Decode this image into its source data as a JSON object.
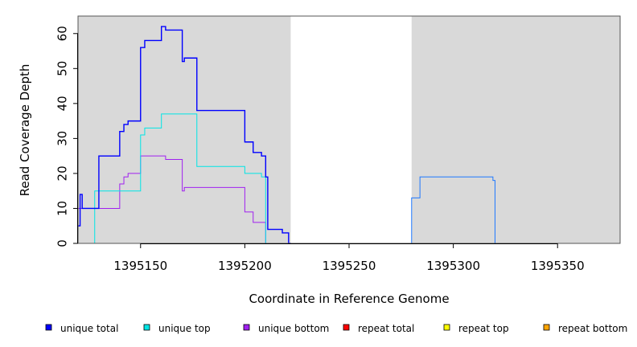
{
  "chart_data": {
    "type": "line",
    "title": "",
    "xlabel": "Coordinate in Reference Genome",
    "ylabel": "Read Coverage Depth",
    "xlim": [
      1395120,
      1395380
    ],
    "ylim": [
      0,
      65
    ],
    "x_ticks": [
      1395150,
      1395200,
      1395250,
      1395300,
      1395350
    ],
    "y_ticks": [
      0,
      10,
      20,
      30,
      40,
      50,
      60
    ],
    "grid": false,
    "shaded_regions": [
      {
        "x_start": 1395120,
        "x_end": 1395222,
        "color": "#d9d9d9"
      },
      {
        "x_start": 1395280,
        "x_end": 1395380,
        "color": "#d9d9d9"
      }
    ],
    "legend_position": "bottom",
    "series": [
      {
        "name": "unique total",
        "color": "#0000ff",
        "x": [
          1395120,
          1395121,
          1395121,
          1395122,
          1395122,
          1395130,
          1395130,
          1395140,
          1395140,
          1395142,
          1395142,
          1395144,
          1395144,
          1395150,
          1395150,
          1395152,
          1395152,
          1395160,
          1395160,
          1395162,
          1395162,
          1395170,
          1395170,
          1395171,
          1395171,
          1395177,
          1395177,
          1395200,
          1395200,
          1395204,
          1395204,
          1395208,
          1395208,
          1395210,
          1395210,
          1395211,
          1395211,
          1395218,
          1395218,
          1395221,
          1395221,
          1395222
        ],
        "y": [
          5,
          5,
          14,
          14,
          10,
          10,
          25,
          25,
          32,
          32,
          34,
          34,
          35,
          35,
          56,
          56,
          58,
          58,
          62,
          62,
          61,
          61,
          52,
          52,
          53,
          53,
          38,
          38,
          29,
          29,
          26,
          26,
          25,
          25,
          19,
          19,
          4,
          4,
          3,
          3,
          0,
          0
        ]
      },
      {
        "name": "unique top",
        "color": "#00e5e5",
        "x": [
          1395120,
          1395128,
          1395128,
          1395150,
          1395150,
          1395152,
          1395152,
          1395160,
          1395160,
          1395177,
          1395177,
          1395200,
          1395200,
          1395208,
          1395208,
          1395210,
          1395210,
          1395222
        ],
        "y": [
          0,
          0,
          15,
          15,
          31,
          31,
          33,
          33,
          37,
          37,
          22,
          22,
          20,
          20,
          19,
          19,
          0,
          0
        ]
      },
      {
        "name": "unique bottom",
        "color": "#a020f0",
        "x": [
          1395120,
          1395140,
          1395140,
          1395142,
          1395142,
          1395144,
          1395144,
          1395150,
          1395150,
          1395162,
          1395162,
          1395170,
          1395170,
          1395171,
          1395171,
          1395200,
          1395200,
          1395204,
          1395204,
          1395210,
          1395210,
          1395222
        ],
        "y": [
          10,
          10,
          17,
          17,
          19,
          19,
          20,
          20,
          25,
          25,
          24,
          24,
          15,
          15,
          16,
          16,
          9,
          9,
          6,
          6,
          0,
          0
        ]
      },
      {
        "name": "repeat total",
        "color": "#ff0000",
        "x": [
          1395120,
          1395380
        ],
        "y": [
          0,
          0
        ]
      },
      {
        "name": "repeat top",
        "color": "#ffff00",
        "x": [
          1395120,
          1395380
        ],
        "y": [
          0,
          0
        ]
      },
      {
        "name": "repeat bottom",
        "color": "#ffa500",
        "x": [
          1395120,
          1395210
        ],
        "y": [
          0,
          0
        ]
      },
      {
        "color": "#1e78ff",
        "x": [
          1395222,
          1395280,
          1395280,
          1395284,
          1395284,
          1395319,
          1395319,
          1395320,
          1395320,
          1395380
        ],
        "y": [
          0,
          0,
          13,
          13,
          19,
          19,
          18,
          18,
          0,
          0
        ]
      }
    ]
  }
}
